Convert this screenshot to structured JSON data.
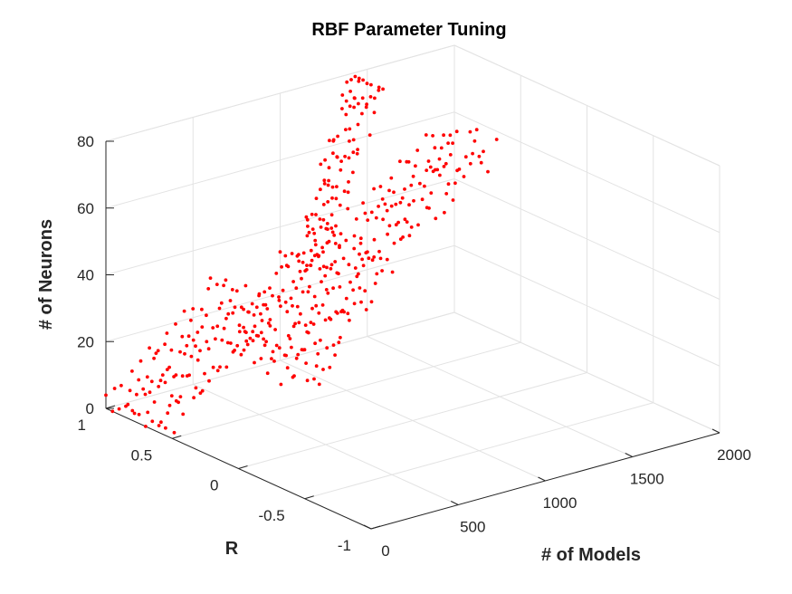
{
  "chart_data": {
    "type": "scatter3d",
    "title": "RBF Parameter Tuning",
    "xlabel": "# of Models",
    "ylabel": "R",
    "zlabel": "# of Neurons",
    "xlim": [
      0,
      2000
    ],
    "ylim": [
      -1,
      1
    ],
    "zlim": [
      0,
      80
    ],
    "xticks": [
      "0",
      "500",
      "1000",
      "1500",
      "2000"
    ],
    "yticks": [
      "-1",
      "-0.5",
      "0",
      "0.5",
      "1"
    ],
    "zticks": [
      "0",
      "20",
      "40",
      "60",
      "80"
    ],
    "grid": true,
    "marker_color": "#ff0000",
    "clusters": [
      {
        "x_range": [
          0,
          650
        ],
        "y_range": [
          0.55,
          1.0
        ],
        "z_range": [
          1,
          30
        ],
        "x_step": 50,
        "y_step": 0.05
      },
      {
        "x_range": [
          700,
          1150
        ],
        "y_range": [
          0.35,
          1.0
        ],
        "z_range": [
          8,
          40
        ],
        "x_step": 30,
        "y_step": 0.05
      },
      {
        "x_range": [
          1100,
          1400
        ],
        "y_range": [
          0.75,
          1.0
        ],
        "z_range": [
          32,
          82
        ],
        "x_step": 25,
        "y_step": 0.03
      },
      {
        "x_range": [
          1350,
          1900
        ],
        "y_range": [
          0.55,
          0.95
        ],
        "z_range": [
          38,
          58
        ],
        "x_step": 50,
        "y_step": 0.05
      }
    ]
  }
}
